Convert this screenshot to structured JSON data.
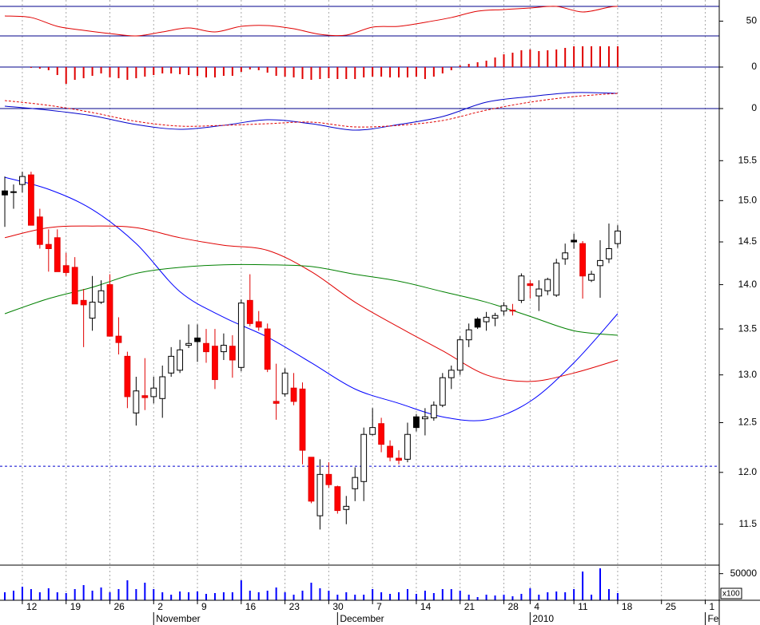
{
  "chart_data": [
    {
      "type": "line",
      "ylim": [
        19.2,
        78.6
      ],
      "yticks": [
        50
      ],
      "levels": [
        70,
        30
      ],
      "level_color": "#00008b",
      "series": [
        {
          "color": "#e00000",
          "dash": false,
          "x": [
            0,
            3,
            6,
            9,
            12,
            15,
            18,
            21,
            24,
            27,
            30,
            33,
            36,
            39,
            42,
            45,
            48,
            51,
            54,
            57,
            60,
            63,
            66,
            69,
            70
          ],
          "values": [
            57.0,
            54.9,
            43.0,
            37.6,
            33.2,
            30.0,
            35.4,
            40.8,
            35.4,
            43.0,
            44.1,
            39.7,
            32.2,
            31.1,
            41.9,
            43.0,
            48.4,
            54.9,
            63.5,
            65.7,
            67.8,
            70.0,
            62.4,
            68.9,
            70.0
          ]
        }
      ]
    },
    {
      "type": "bar",
      "color": "#e00000",
      "ylim": [
        -0.29,
        0.29
      ],
      "yticks": [
        0
      ],
      "grid": true,
      "grid_color": "#00008b",
      "values": [
        0,
        0,
        0,
        -0.01,
        -0.02,
        -0.04,
        -0.1,
        -0.21,
        -0.16,
        -0.14,
        -0.11,
        -0.08,
        -0.13,
        -0.14,
        -0.16,
        -0.14,
        -0.12,
        -0.1,
        -0.08,
        -0.08,
        -0.09,
        -0.1,
        -0.11,
        -0.13,
        -0.13,
        -0.11,
        -0.11,
        -0.06,
        -0.03,
        -0.04,
        -0.07,
        -0.11,
        -0.12,
        -0.13,
        -0.15,
        -0.16,
        -0.15,
        -0.14,
        -0.15,
        -0.15,
        -0.15,
        -0.13,
        -0.12,
        -0.12,
        -0.13,
        -0.13,
        -0.13,
        -0.12,
        -0.15,
        -0.12,
        -0.08,
        -0.04,
        0.02,
        0.04,
        0.06,
        0.08,
        0.12,
        0.16,
        0.18,
        0.21,
        0.22,
        0.2,
        0.21,
        0.22,
        0.24,
        0.26,
        0.26,
        0.26,
        0.26,
        0.26,
        0.26
      ]
    },
    {
      "type": "line",
      "ylim": [
        -0.34,
        0.23
      ],
      "yticks": [
        0
      ],
      "grid": true,
      "grid_color": "#00008b",
      "series": [
        {
          "color": "#0000cc",
          "dash": false,
          "x": [
            0,
            5,
            10,
            15,
            20,
            25,
            30,
            35,
            40,
            45,
            50,
            55,
            60,
            65,
            70
          ],
          "values": [
            0.03,
            -0.02,
            -0.09,
            -0.2,
            -0.26,
            -0.21,
            -0.14,
            -0.19,
            -0.27,
            -0.2,
            -0.1,
            0.08,
            0.15,
            0.2,
            0.19
          ]
        },
        {
          "color": "#e00000",
          "dash": true,
          "x": [
            0,
            5,
            10,
            15,
            20,
            25,
            30,
            35,
            40,
            45,
            50,
            55,
            60,
            65,
            70
          ],
          "values": [
            0.1,
            0.04,
            -0.05,
            -0.16,
            -0.22,
            -0.21,
            -0.19,
            -0.17,
            -0.23,
            -0.21,
            -0.15,
            -0.02,
            0.08,
            0.15,
            0.19
          ]
        }
      ]
    },
    {
      "type": "candlestick",
      "log_scale": true,
      "ylim": [
        11.12,
        16.03
      ],
      "yticks": [
        15.5,
        {
          "value": 15,
          "label": "15.0"
        },
        14.5,
        {
          "value": 14,
          "label": "14.0"
        },
        13.5,
        {
          "value": 13,
          "label": "13.0"
        },
        12.5,
        {
          "value": 12,
          "label": "12.0"
        },
        11.5
      ],
      "reference_line": 12.06,
      "reference_color": "#0000cc",
      "x": [
        0,
        1,
        2,
        3,
        4,
        5,
        6,
        7,
        8,
        9,
        10,
        11,
        12,
        13,
        14,
        15,
        16,
        17,
        18,
        19,
        20,
        21,
        22,
        23,
        24,
        25,
        26,
        27,
        28,
        29,
        30,
        31,
        32,
        33,
        34,
        35,
        36,
        37,
        38,
        39,
        40,
        41,
        42,
        43,
        44,
        45,
        46,
        47,
        48,
        49,
        50,
        51,
        52,
        53,
        54,
        55,
        56,
        57,
        58,
        59,
        60,
        61,
        62,
        63,
        64,
        65,
        66,
        67,
        68,
        69,
        70
      ],
      "open": [
        15.07,
        15.1,
        15.2,
        15.32,
        14.8,
        14.47,
        14.55,
        14.22,
        14.2,
        13.82,
        13.62,
        13.8,
        14.0,
        13.42,
        13.2,
        12.6,
        12.78,
        12.77,
        12.75,
        13.02,
        13.05,
        13.32,
        13.36,
        13.34,
        13.31,
        13.25,
        13.31,
        13.08,
        13.82,
        13.58,
        13.5,
        12.72,
        12.8,
        12.86,
        12.85,
        12.15,
        11.58,
        11.98,
        11.86,
        11.64,
        11.84,
        11.91,
        12.38,
        12.49,
        12.26,
        12.14,
        12.13,
        12.45,
        12.54,
        12.55,
        12.68,
        12.97,
        13.05,
        13.38,
        13.52,
        13.58,
        13.62,
        13.7,
        13.71,
        13.82,
        14.01,
        13.87,
        13.93,
        13.88,
        14.3,
        14.5,
        14.48,
        14.05,
        14.22,
        14.3,
        14.48
      ],
      "high": [
        15.3,
        15.2,
        15.36,
        15.36,
        14.9,
        14.65,
        14.65,
        14.37,
        14.32,
        13.95,
        14.1,
        14.05,
        14.12,
        13.63,
        13.25,
        12.98,
        13.18,
        12.98,
        13.1,
        13.3,
        13.38,
        13.55,
        13.55,
        13.5,
        13.5,
        13.45,
        13.43,
        13.83,
        14.12,
        13.7,
        13.56,
        13.12,
        13.07,
        13.02,
        12.92,
        12.15,
        12.13,
        12.1,
        11.87,
        11.77,
        12.05,
        12.45,
        12.65,
        12.55,
        12.32,
        12.22,
        12.5,
        12.59,
        12.65,
        12.72,
        13.02,
        13.1,
        13.42,
        13.56,
        13.63,
        13.69,
        13.68,
        13.8,
        13.78,
        14.13,
        14.05,
        14.05,
        14.08,
        14.3,
        14.48,
        14.6,
        14.51,
        14.16,
        14.52,
        14.72,
        14.7
      ],
      "low": [
        14.68,
        14.9,
        15.1,
        14.7,
        14.42,
        14.15,
        14.15,
        14.1,
        13.78,
        13.3,
        13.48,
        13.78,
        13.42,
        13.22,
        12.65,
        12.47,
        12.63,
        12.7,
        12.55,
        12.98,
        13.02,
        13.29,
        13.14,
        13.13,
        12.85,
        13.16,
        12.97,
        13.04,
        13.53,
        13.48,
        13.03,
        12.53,
        12.77,
        12.68,
        12.08,
        11.7,
        11.45,
        11.85,
        11.6,
        11.5,
        11.72,
        11.72,
        12.37,
        12.2,
        12.11,
        12.08,
        12.1,
        12.41,
        12.37,
        12.52,
        12.66,
        12.85,
        13.0,
        13.3,
        13.5,
        13.48,
        13.53,
        13.65,
        13.65,
        13.79,
        13.84,
        13.7,
        13.88,
        13.86,
        14.23,
        14.42,
        13.84,
        14.03,
        13.85,
        14.25,
        14.43
      ],
      "close": [
        15.12,
        15.11,
        15.3,
        14.7,
        14.47,
        14.42,
        14.15,
        14.14,
        13.78,
        13.77,
        13.8,
        13.93,
        13.42,
        13.35,
        12.77,
        12.83,
        12.76,
        12.86,
        12.98,
        13.2,
        13.27,
        13.34,
        13.4,
        13.25,
        12.95,
        13.32,
        13.16,
        13.79,
        13.56,
        13.52,
        13.06,
        12.7,
        13.02,
        12.72,
        12.22,
        11.72,
        11.98,
        11.88,
        11.63,
        11.67,
        11.95,
        12.38,
        12.45,
        12.28,
        12.15,
        12.12,
        12.38,
        12.56,
        12.56,
        12.68,
        12.97,
        13.05,
        13.38,
        13.49,
        13.61,
        13.63,
        13.65,
        13.76,
        13.7,
        14.1,
        13.99,
        13.95,
        14.06,
        14.25,
        14.37,
        14.52,
        14.1,
        14.12,
        14.28,
        14.42,
        14.63
      ],
      "fills": [
        "black",
        "black",
        "white",
        "red",
        "red",
        "red",
        "red",
        "red",
        "red",
        "red",
        "white",
        "white",
        "red",
        "red",
        "red",
        "white",
        "red",
        "white",
        "white",
        "white",
        "white",
        "white",
        "black",
        "red",
        "red",
        "white",
        "red",
        "white",
        "red",
        "red",
        "red",
        "red",
        "white",
        "red",
        "red",
        "red",
        "white",
        "red",
        "red",
        "white",
        "white",
        "white",
        "white",
        "red",
        "red",
        "red",
        "white",
        "black",
        "white",
        "white",
        "white",
        "white",
        "white",
        "white",
        "black",
        "white",
        "white",
        "white",
        "red",
        "white",
        "red",
        "white",
        "white",
        "white",
        "white",
        "black",
        "red",
        "white",
        "white",
        "white",
        "white"
      ],
      "series": [
        {
          "color": "#0000ff",
          "dash": false,
          "x": [
            0,
            5,
            10,
            15,
            20,
            25,
            30,
            35,
            40,
            45,
            50,
            55,
            60,
            65,
            70
          ],
          "values": [
            15.29,
            15.14,
            14.89,
            14.48,
            13.92,
            13.63,
            13.41,
            13.13,
            12.85,
            12.7,
            12.56,
            12.53,
            12.72,
            13.13,
            13.67
          ]
        },
        {
          "color": "#e00000",
          "dash": false,
          "x": [
            0,
            5,
            10,
            15,
            20,
            25,
            30,
            35,
            40,
            45,
            50,
            55,
            60,
            65,
            70
          ],
          "values": [
            14.55,
            14.67,
            14.69,
            14.67,
            14.55,
            14.46,
            14.4,
            14.15,
            13.8,
            13.52,
            13.26,
            13.0,
            12.93,
            13.02,
            13.16
          ]
        },
        {
          "color": "#008000",
          "dash": false,
          "x": [
            0,
            5,
            10,
            15,
            20,
            25,
            30,
            35,
            40,
            45,
            50,
            55,
            60,
            65,
            70
          ],
          "values": [
            13.67,
            13.84,
            13.97,
            14.13,
            14.2,
            14.23,
            14.23,
            14.21,
            14.12,
            14.04,
            13.92,
            13.8,
            13.64,
            13.48,
            13.43
          ]
        }
      ]
    },
    {
      "type": "bar",
      "color": "#0000ff",
      "ylim": [
        0,
        63000
      ],
      "yticks": [
        50000
      ],
      "unit_label": "x100",
      "values": [
        15000,
        18000,
        25500,
        21000,
        15000,
        22500,
        15000,
        13500,
        21000,
        28500,
        18000,
        24000,
        15000,
        21000,
        37500,
        21000,
        33000,
        21000,
        15000,
        10500,
        16500,
        15000,
        16500,
        12000,
        13500,
        15000,
        15000,
        37500,
        18000,
        15000,
        18000,
        24000,
        15000,
        10500,
        18000,
        33000,
        22500,
        18000,
        10500,
        15000,
        10500,
        10500,
        21000,
        15000,
        12000,
        15000,
        21000,
        12000,
        18000,
        13500,
        21000,
        21000,
        18000,
        10500,
        6000,
        10500,
        9000,
        10500,
        7500,
        12000,
        22500,
        10500,
        15000,
        16500,
        15000,
        21000,
        54000,
        10500,
        60000,
        21000,
        13500
      ],
      "xlim": [
        -0.55,
        81.6
      ],
      "xticks": [
        {
          "value": 2,
          "label": "12"
        },
        {
          "value": 7,
          "label": "19"
        },
        {
          "value": 12,
          "label": "26"
        },
        {
          "value": 17,
          "label": "2"
        },
        {
          "value": 22,
          "label": "9"
        },
        {
          "value": 27,
          "label": "16"
        },
        {
          "value": 32,
          "label": "23"
        },
        {
          "value": 37,
          "label": "30"
        },
        {
          "value": 42,
          "label": "7"
        },
        {
          "value": 47,
          "label": "14"
        },
        {
          "value": 52,
          "label": "21"
        },
        {
          "value": 57,
          "label": "28"
        },
        {
          "value": 60,
          "label": "4"
        },
        {
          "value": 65,
          "label": "11"
        },
        {
          "value": 70,
          "label": "18"
        },
        {
          "value": 75,
          "label": "25"
        },
        {
          "value": 80,
          "label": "1"
        }
      ],
      "month_labels": [
        {
          "value": 17,
          "label": "November"
        },
        {
          "value": 38,
          "label": "December"
        },
        {
          "value": 60,
          "label": "2010"
        },
        {
          "value": 80,
          "label": "Fe"
        }
      ]
    }
  ]
}
